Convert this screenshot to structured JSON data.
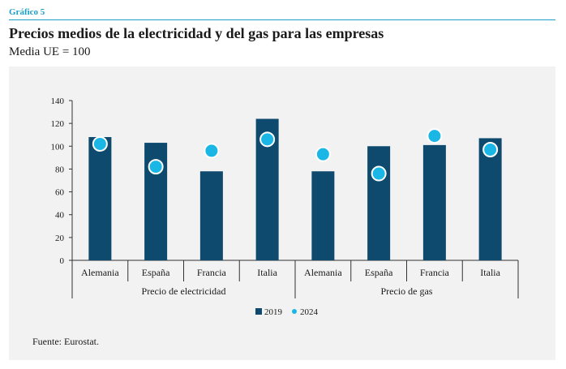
{
  "header": {
    "figure_label": "Gráfico 5",
    "title": "Precios medios de la electricidad y del gas para las empresas",
    "subtitle": "Media UE = 100"
  },
  "footer": {
    "source": "Fuente: Eurostat."
  },
  "colors": {
    "accent": "#1a9fc9",
    "series_2019": "#0d4a6e",
    "series_2024": "#1ab7e6",
    "panel_bg": "#f2f2f2"
  },
  "chart_data": {
    "type": "bar",
    "title": "",
    "xlabel": "",
    "ylabel": "",
    "ylim": [
      0,
      140
    ],
    "yticks": [
      0,
      20,
      40,
      60,
      80,
      100,
      120,
      140
    ],
    "categories": [
      "Alemania",
      "España",
      "Francia",
      "Italia",
      "Alemania",
      "España",
      "Francia",
      "Italia"
    ],
    "groups": [
      {
        "label": "Precio de electricidad",
        "span": 4
      },
      {
        "label": "Precio de gas",
        "span": 4
      }
    ],
    "series": [
      {
        "name": "2019",
        "kind": "bar",
        "values": [
          108,
          103,
          78,
          124,
          78,
          100,
          101,
          107
        ]
      },
      {
        "name": "2024",
        "kind": "dot",
        "values": [
          102,
          82,
          96,
          106,
          93,
          76,
          109,
          97
        ]
      }
    ],
    "legend": {
      "position": "bottom",
      "entries": [
        "2019",
        "2024"
      ]
    },
    "grid": false
  }
}
